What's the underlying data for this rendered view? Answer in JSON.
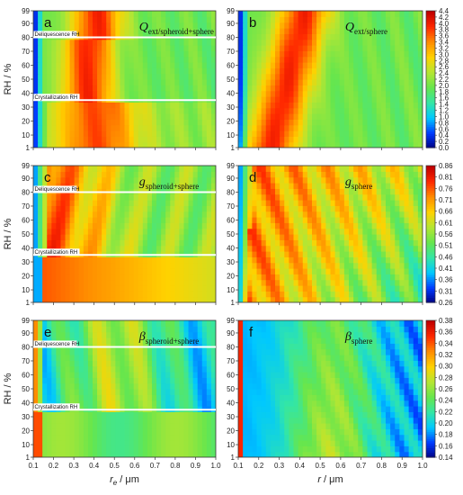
{
  "chart_data": {
    "type": "heatmap",
    "y_axis": {
      "label": "RH / %",
      "ticks": [
        1,
        10,
        20,
        30,
        40,
        50,
        60,
        70,
        80,
        90,
        99
      ],
      "range": [
        1,
        99
      ]
    },
    "x_axis_left": {
      "label_main": "r",
      "label_sub": "e",
      "label_unit": " / μm",
      "ticks": [
        "0.1",
        "0.2",
        "0.3",
        "0.4",
        "0.5",
        "0.6",
        "0.7",
        "0.8",
        "0.9",
        "1.0"
      ],
      "range": [
        0.1,
        1.0
      ]
    },
    "x_axis_right": {
      "label_main": "r",
      "label_unit": " / μm",
      "ticks": [
        "0.1",
        "0.2",
        "0.3",
        "0.4",
        "0.5",
        "0.6",
        "0.7",
        "0.8",
        "0.9",
        "1.0"
      ],
      "range": [
        0.1,
        1.0
      ]
    },
    "rh_lines": {
      "deliquescence_label": "Deliquescence RH",
      "deliquescence_rh": 80,
      "crystallization_label": "Crystallization RH",
      "crystallization_rh": 35
    },
    "panels": [
      {
        "letter": "a",
        "quantity": "Q",
        "subscript": "ext/spheroid+sphere",
        "kind": "ext"
      },
      {
        "letter": "b",
        "quantity": "Q",
        "subscript": "ext/sphere",
        "kind": "ext"
      },
      {
        "letter": "c",
        "quantity": "g",
        "subscript": "spheroid+sphere",
        "kind": "g"
      },
      {
        "letter": "d",
        "quantity": "g",
        "subscript": "sphere",
        "kind": "g"
      },
      {
        "letter": "e",
        "quantity": "β",
        "subscript": "spheroid+sphere",
        "kind": "beta"
      },
      {
        "letter": "f",
        "quantity": "β",
        "subscript": "sphere",
        "kind": "beta"
      }
    ],
    "colorbars": [
      {
        "row": 0,
        "ticks": [
          "4.4",
          "4.2",
          "4.0",
          "3.8",
          "3.6",
          "3.4",
          "3.2",
          "3.0",
          "2.8",
          "2.6",
          "2.4",
          "2.2",
          "2.0",
          "1.8",
          "1.6",
          "1.4",
          "1.2",
          "1.0",
          "0.8",
          "0.6",
          "0.4",
          "0.2",
          "0.0"
        ]
      },
      {
        "row": 1,
        "ticks": [
          "0.86",
          "0.81",
          "0.76",
          "0.71",
          "0.66",
          "0.61",
          "0.56",
          "0.51",
          "0.46",
          "0.41",
          "0.36",
          "0.31",
          "0.26"
        ]
      },
      {
        "row": 2,
        "ticks": [
          "0.38",
          "0.36",
          "0.34",
          "0.32",
          "0.30",
          "0.28",
          "0.26",
          "0.24",
          "0.22",
          "0.20",
          "0.18",
          "0.16",
          "0.14"
        ]
      }
    ],
    "colormap": [
      "#00007f",
      "#0039ff",
      "#00c8ff",
      "#33e6a6",
      "#66e64d",
      "#b4e633",
      "#ffd200",
      "#ff8c00",
      "#ff2800",
      "#c00000"
    ]
  }
}
